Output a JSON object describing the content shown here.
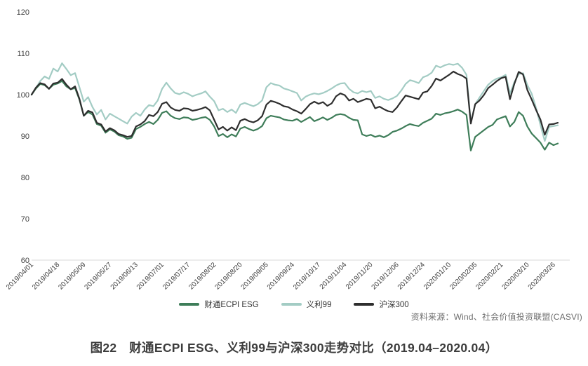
{
  "figure": {
    "source_label": "资料来源：Wind、社会价值投资联盟(CASVI)",
    "caption": "图22　财通ECPI ESG、义利99与沪深300走势对比（2019.04–2020.04）"
  },
  "colors": {
    "baseline": "#d9d9d9",
    "axis_text": "#404040",
    "source_text": "#6e6e6e",
    "caption_text": "#3d3d3d"
  },
  "chart_data": {
    "type": "line",
    "title": "",
    "xlabel": "",
    "ylabel": "",
    "ylim": [
      60,
      120
    ],
    "y_ticks": [
      60,
      70,
      80,
      90,
      100,
      110,
      120
    ],
    "grid": false,
    "legend_position": "bottom",
    "x_tick_labels": [
      "2019/04/01",
      "2019/04/18",
      "2019/05/09",
      "2019/05/27",
      "2019/06/13",
      "2019/07/01",
      "2019/07/17",
      "2019/08/02",
      "2019/08/20",
      "2019/09/05",
      "2019/09/24",
      "2019/10/17",
      "2019/11/04",
      "2019/11/20",
      "2019/12/06",
      "2019/12/24",
      "2020/01/10",
      "2020/02/05",
      "2020/02/21",
      "2020/03/10",
      "2020/03/26"
    ],
    "points_per_tick_interval": 6,
    "series": [
      {
        "name": "财通ECPI ESG",
        "color": "#3e7d59",
        "values": [
          100.0,
          101.5,
          102.6,
          102.3,
          101.4,
          102.4,
          102.7,
          103.3,
          102.0,
          101.3,
          101.6,
          98.8,
          94.9,
          95.8,
          95.2,
          92.9,
          92.5,
          90.8,
          91.6,
          91.1,
          90.2,
          89.9,
          89.3,
          89.6,
          91.7,
          92.2,
          92.9,
          93.4,
          92.9,
          93.9,
          95.6,
          96.0,
          94.9,
          94.3,
          94.1,
          94.5,
          94.4,
          93.9,
          94.1,
          94.4,
          94.6,
          93.9,
          92.3,
          90.0,
          90.5,
          89.7,
          90.4,
          89.9,
          91.8,
          92.2,
          91.7,
          91.3,
          91.7,
          92.4,
          94.3,
          94.9,
          94.7,
          94.5,
          94.0,
          93.8,
          93.7,
          94.1,
          93.4,
          94.0,
          94.6,
          93.6,
          94.0,
          94.5,
          93.9,
          94.4,
          95.1,
          95.3,
          95.1,
          94.4,
          93.9,
          93.8,
          90.4,
          90.0,
          90.3,
          89.8,
          90.1,
          89.7,
          90.2,
          91.0,
          91.3,
          91.8,
          92.4,
          92.9,
          92.6,
          92.4,
          93.2,
          93.7,
          94.2,
          95.4,
          95.1,
          95.5,
          95.7,
          96.0,
          96.4,
          95.9,
          95.1,
          86.5,
          89.8,
          90.6,
          91.4,
          92.2,
          92.7,
          94.0,
          94.4,
          94.8,
          92.3,
          93.4,
          95.8,
          94.9,
          92.3,
          90.6,
          89.5,
          88.4,
          86.7,
          88.4,
          87.8,
          88.2
        ]
      },
      {
        "name": "义利99",
        "color": "#a3ccc4",
        "values": [
          100.0,
          101.6,
          103.3,
          104.4,
          103.8,
          106.3,
          105.6,
          107.6,
          106.2,
          104.7,
          105.2,
          101.8,
          98.3,
          99.4,
          97.0,
          95.2,
          96.3,
          94.0,
          95.4,
          94.8,
          94.2,
          93.6,
          93.0,
          94.7,
          95.6,
          94.9,
          96.4,
          97.5,
          97.2,
          98.6,
          101.4,
          102.9,
          101.5,
          100.4,
          100.1,
          100.6,
          100.2,
          99.6,
          100.0,
          100.3,
          100.8,
          99.5,
          98.4,
          96.2,
          96.6,
          95.8,
          96.4,
          95.6,
          97.6,
          98.0,
          97.6,
          97.2,
          97.7,
          98.6,
          101.8,
          102.8,
          102.4,
          102.2,
          101.5,
          101.2,
          100.8,
          100.4,
          98.6,
          99.5,
          100.0,
          100.3,
          100.1,
          100.4,
          100.9,
          101.5,
          102.2,
          102.7,
          102.8,
          101.4,
          100.6,
          100.3,
          100.9,
          100.6,
          100.9,
          99.2,
          99.6,
          99.0,
          98.7,
          99.1,
          99.7,
          101.0,
          102.6,
          103.5,
          103.2,
          102.8,
          104.2,
          104.6,
          105.3,
          107.0,
          106.6,
          107.1,
          107.4,
          107.2,
          107.5,
          106.5,
          104.8,
          93.2,
          97.7,
          99.3,
          100.9,
          102.4,
          103.3,
          103.9,
          104.2,
          104.8,
          100.2,
          103.0,
          105.0,
          105.2,
          102.3,
          100.2,
          96.8,
          92.7,
          88.8,
          92.2,
          92.4,
          92.6
        ]
      },
      {
        "name": "沪深300",
        "color": "#2e2e2e",
        "values": [
          100.0,
          101.7,
          102.8,
          102.5,
          101.4,
          102.7,
          102.9,
          103.8,
          102.4,
          101.3,
          102.0,
          99.0,
          94.9,
          96.1,
          95.7,
          93.2,
          92.8,
          91.1,
          91.9,
          91.4,
          90.5,
          90.2,
          89.8,
          90.0,
          92.3,
          92.8,
          93.6,
          95.1,
          94.8,
          95.8,
          97.8,
          98.2,
          96.9,
          96.3,
          96.1,
          96.7,
          96.6,
          96.1,
          96.3,
          96.6,
          97.0,
          96.2,
          93.9,
          91.6,
          92.2,
          91.3,
          92.1,
          91.4,
          93.7,
          94.1,
          93.6,
          93.3,
          93.8,
          94.8,
          97.6,
          98.5,
          98.2,
          97.8,
          97.2,
          97.0,
          96.4,
          96.0,
          95.4,
          96.5,
          97.7,
          98.3,
          97.8,
          98.2,
          97.3,
          97.9,
          99.6,
          100.3,
          99.9,
          98.6,
          99.0,
          98.2,
          98.6,
          99.0,
          98.8,
          96.7,
          97.1,
          96.5,
          96.0,
          95.8,
          96.9,
          98.4,
          99.8,
          99.5,
          99.2,
          98.9,
          100.5,
          100.8,
          102.1,
          103.9,
          103.4,
          104.1,
          104.8,
          105.6,
          105.0,
          104.6,
          103.9,
          93.0,
          97.7,
          98.6,
          99.9,
          101.6,
          102.4,
          103.3,
          104.0,
          104.3,
          98.9,
          102.6,
          105.5,
          104.9,
          101.1,
          98.8,
          96.3,
          94.0,
          90.3,
          92.8,
          92.9,
          93.2
        ]
      }
    ]
  }
}
